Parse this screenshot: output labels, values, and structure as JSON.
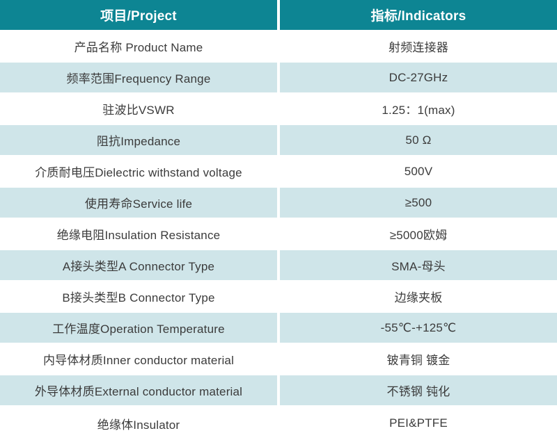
{
  "colors": {
    "header_bg": "#0d8593",
    "header_text": "#ffffff",
    "row_bg": "#ffffff",
    "row_alt_bg": "#cfe5e9",
    "body_text": "#3b3b3b",
    "divider": "#ffffff"
  },
  "table": {
    "header": {
      "project": "项目/Project",
      "indicator": "指标/Indicators"
    },
    "rows": [
      {
        "project": "产品名称 Product Name",
        "indicator": "射频连接器"
      },
      {
        "project": "频率范围Frequency Range",
        "indicator": "DC-27GHz"
      },
      {
        "project": "驻波比VSWR",
        "indicator": "1.25：1(max)"
      },
      {
        "project": "阻抗Impedance",
        "indicator": "50 Ω"
      },
      {
        "project": "介质耐电压Dielectric withstand voltage",
        "indicator": "500V"
      },
      {
        "project": "使用寿命Service life",
        "indicator": "≥500"
      },
      {
        "project": "绝缘电阻Insulation Resistance",
        "indicator": "≥5000欧姆"
      },
      {
        "project": "A接头类型A Connector Type",
        "indicator": "SMA-母头"
      },
      {
        "project": "B接头类型B Connector Type",
        "indicator": "边缘夹板"
      },
      {
        "project": "工作温度Operation Temperature",
        "indicator": "-55℃-+125℃"
      },
      {
        "project": "内导体材质Inner conductor material",
        "indicator": "铍青铜 镀金"
      },
      {
        "project": "外导体材质External conductor material",
        "indicator": "不锈钢 钝化"
      },
      {
        "project": "绝缘体Insulator",
        "indicator": "PEI&PTFE"
      }
    ]
  }
}
